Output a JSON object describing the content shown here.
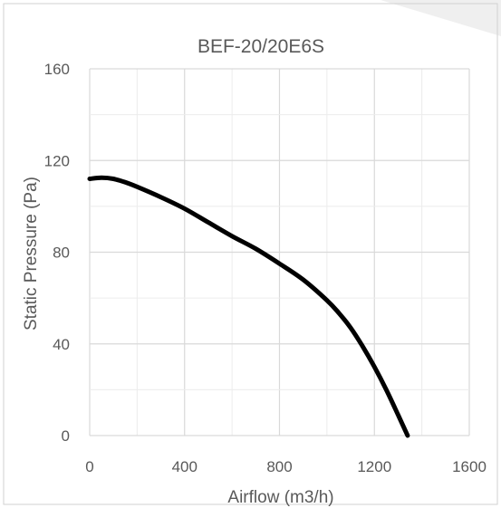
{
  "chart_data": {
    "type": "line",
    "title": "BEF-20/20E6S",
    "xlabel": "Airflow (m3/h)",
    "ylabel": "Static Pressure (Pa)",
    "xlim": [
      0,
      1600
    ],
    "ylim": [
      0,
      160
    ],
    "xticks": [
      0,
      400,
      800,
      1200,
      1600
    ],
    "yticks": [
      0,
      40,
      80,
      120,
      160
    ],
    "grid": true,
    "minor_grid": true,
    "legend": "none",
    "colors": {
      "series": "#000000",
      "grid": "#d9d9d9",
      "text": "#595959",
      "frame": "#bfbfbf"
    },
    "series": [
      {
        "x": [
          0,
          50,
          100,
          150,
          200,
          300,
          400,
          500,
          600,
          700,
          800,
          900,
          1000,
          1050,
          1100,
          1150,
          1200,
          1250,
          1300,
          1340
        ],
        "y": [
          112,
          112.5,
          112,
          110.5,
          108.5,
          104,
          99,
          93,
          87,
          81.5,
          75,
          68,
          59,
          53.5,
          47,
          39,
          30,
          20,
          9,
          0
        ]
      }
    ]
  }
}
